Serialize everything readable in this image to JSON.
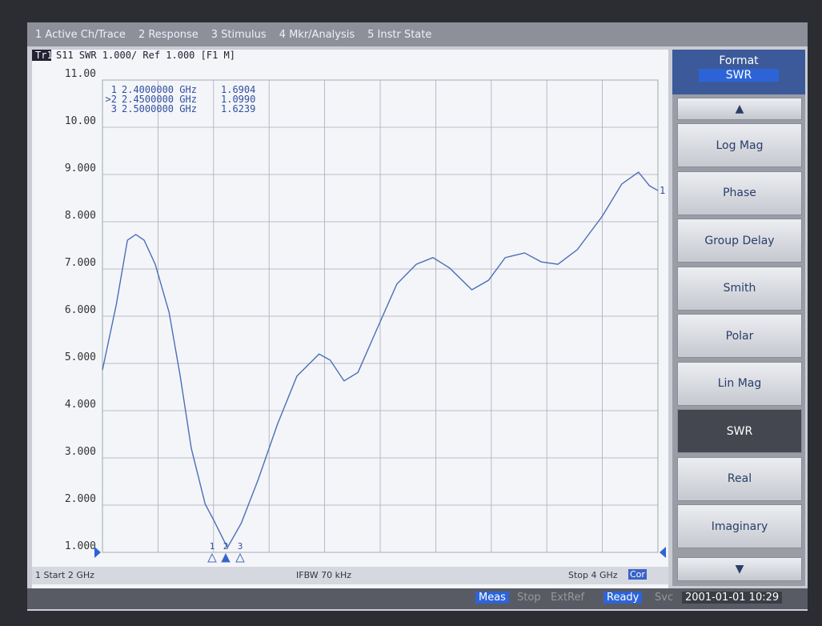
{
  "menu": [
    "1 Active Ch/Trace",
    "2 Response",
    "3 Stimulus",
    "4 Mkr/Analysis",
    "5 Instr State"
  ],
  "header": {
    "trace": "Tr1",
    "text": "S11 SWR 1.000/ Ref 1.000 [F1 M]"
  },
  "markers": [
    {
      "label": "1",
      "freq": "2.4000000 GHz",
      "value": "1.6904"
    },
    {
      "label": ">2",
      "freq": "2.4500000 GHz",
      "value": "1.0990"
    },
    {
      "label": "3",
      "freq": "2.5000000 GHz",
      "value": "1.6239"
    }
  ],
  "marker_flags": [
    "1",
    "2",
    "3"
  ],
  "trace_label": "1",
  "chart_data": {
    "type": "line",
    "xlim": [
      2,
      4
    ],
    "ylim": [
      1,
      11
    ],
    "yticks": [
      {
        "value": 11,
        "label": "11.00"
      },
      {
        "value": 10,
        "label": "10.00"
      },
      {
        "value": 9,
        "label": "9.000"
      },
      {
        "value": 8,
        "label": "8.000"
      },
      {
        "value": 7,
        "label": "7.000"
      },
      {
        "value": 6,
        "label": "6.000"
      },
      {
        "value": 5,
        "label": "5.000"
      },
      {
        "value": 4,
        "label": "4.000"
      },
      {
        "value": 3,
        "label": "3.000"
      },
      {
        "value": 2,
        "label": "2.000"
      },
      {
        "value": 1,
        "label": "1.000"
      }
    ],
    "color": "#4a6fb8",
    "x": [
      2.0,
      2.05,
      2.09,
      2.12,
      2.15,
      2.19,
      2.24,
      2.28,
      2.32,
      2.37,
      2.4,
      2.45,
      2.5,
      2.56,
      2.63,
      2.7,
      2.78,
      2.82,
      2.87,
      2.92,
      2.99,
      3.06,
      3.13,
      3.19,
      3.25,
      3.33,
      3.39,
      3.45,
      3.52,
      3.58,
      3.64,
      3.71,
      3.8,
      3.87,
      3.93,
      3.97,
      4.0
    ],
    "values": [
      4.86,
      6.25,
      7.61,
      7.73,
      7.61,
      7.1,
      6.08,
      4.73,
      3.2,
      2.02,
      1.69,
      1.1,
      1.62,
      2.53,
      3.71,
      4.73,
      5.2,
      5.07,
      4.63,
      4.81,
      5.75,
      6.68,
      7.1,
      7.24,
      7.02,
      6.56,
      6.76,
      7.24,
      7.34,
      7.15,
      7.1,
      7.41,
      8.12,
      8.8,
      9.05,
      8.76,
      8.66
    ]
  },
  "footer": {
    "start": "1 Start 2 GHz",
    "ifbw": "IFBW 70 kHz",
    "stop": "Stop 4 GHz",
    "cor": "Cor"
  },
  "softkeys": {
    "title": "Format",
    "current": "SWR",
    "keys": [
      "Log Mag",
      "Phase",
      "Group Delay",
      "Smith",
      "Polar",
      "Lin Mag",
      "SWR",
      "Real",
      "Imaginary"
    ],
    "selected": 6
  },
  "status": [
    "Meas",
    "Stop",
    "ExtRef",
    "Ready",
    "Svc",
    "2001-01-01 10:29"
  ]
}
